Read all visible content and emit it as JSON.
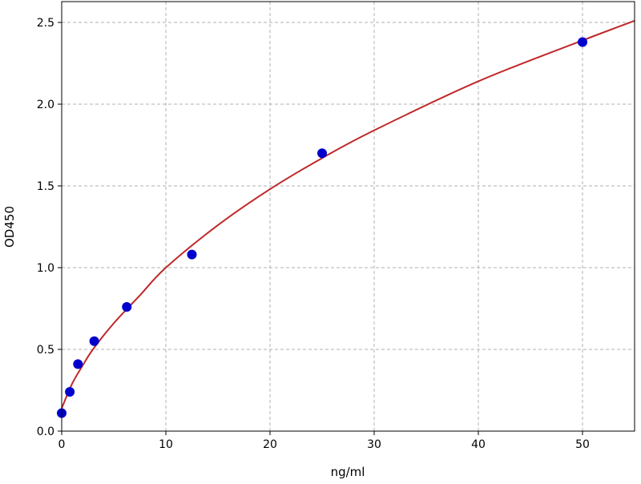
{
  "chart_data": {
    "type": "scatter",
    "title": "",
    "xlabel": "ng/ml",
    "ylabel": "OD450",
    "xlim": [
      0,
      55
    ],
    "ylim": [
      0,
      2.6
    ],
    "grid": true,
    "x_ticks": [
      0,
      10,
      20,
      30,
      40,
      50
    ],
    "x_tick_labels": [
      "0",
      "10",
      "20",
      "30",
      "40",
      "50"
    ],
    "y_ticks": [
      0,
      0.5,
      1.0,
      1.5,
      2.0,
      2.5
    ],
    "y_tick_labels": [
      "0.0",
      "0.5",
      "1.0",
      "1.5",
      "2.0",
      "2.5"
    ],
    "series": [
      {
        "kind": "points",
        "color": "#0000cc",
        "x": [
          0,
          0.78,
          1.56,
          3.125,
          6.25,
          12.5,
          25,
          50
        ],
        "y": [
          0.11,
          0.24,
          0.41,
          0.55,
          0.76,
          1.08,
          1.7,
          2.38
        ]
      },
      {
        "kind": "fit-curve",
        "color": "#c0282a",
        "x": [
          0,
          1,
          2,
          3,
          5,
          7.5,
          10,
          15,
          20,
          25,
          30,
          40,
          50,
          55
        ],
        "y": [
          0.14,
          0.29,
          0.4,
          0.5,
          0.66,
          0.83,
          1.0,
          1.26,
          1.48,
          1.67,
          1.84,
          2.14,
          2.39,
          2.51
        ]
      }
    ]
  }
}
